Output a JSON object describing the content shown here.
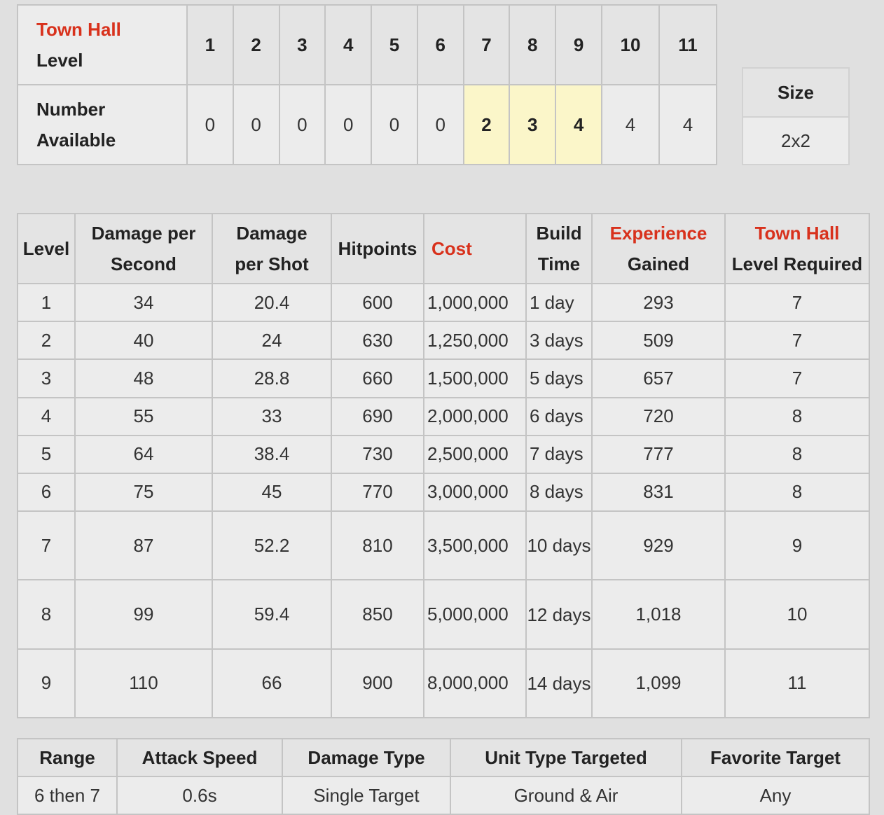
{
  "availability": {
    "th_label_red": "Town Hall",
    "th_label_rest": "Level",
    "levels": [
      "1",
      "2",
      "3",
      "4",
      "5",
      "6",
      "7",
      "8",
      "9",
      "10",
      "11"
    ],
    "number_label_1": "Number",
    "number_label_2": "Available",
    "counts": [
      "0",
      "0",
      "0",
      "0",
      "0",
      "0",
      "2",
      "3",
      "4",
      "4",
      "4"
    ],
    "highlighted_levels": [
      "7",
      "8",
      "9"
    ]
  },
  "size": {
    "header": "Size",
    "value": "2x2"
  },
  "levels_table": {
    "headers": {
      "level": "Level",
      "dps_1": "Damage per",
      "dps_2": "Second",
      "dmg_shot_1": "Damage",
      "dmg_shot_2": "per Shot",
      "hitpoints": "Hitpoints",
      "cost": "Cost",
      "build_1": "Build",
      "build_2": "Time",
      "exp_1": "Experience",
      "exp_2": "Gained",
      "th_1": "Town Hall",
      "th_2": "Level Required"
    },
    "rows": [
      {
        "level": "1",
        "dps": "34",
        "dmg_shot": "20.4",
        "hitpoints": "600",
        "cost": "1,000,000",
        "build": "1 day",
        "exp": "293",
        "th": "7"
      },
      {
        "level": "2",
        "dps": "40",
        "dmg_shot": "24",
        "hitpoints": "630",
        "cost": "1,250,000",
        "build": "3 days",
        "exp": "509",
        "th": "7"
      },
      {
        "level": "3",
        "dps": "48",
        "dmg_shot": "28.8",
        "hitpoints": "660",
        "cost": "1,500,000",
        "build": "5 days",
        "exp": "657",
        "th": "7"
      },
      {
        "level": "4",
        "dps": "55",
        "dmg_shot": "33",
        "hitpoints": "690",
        "cost": "2,000,000",
        "build": "6 days",
        "exp": "720",
        "th": "8"
      },
      {
        "level": "5",
        "dps": "64",
        "dmg_shot": "38.4",
        "hitpoints": "730",
        "cost": "2,500,000",
        "build": "7 days",
        "exp": "777",
        "th": "8"
      },
      {
        "level": "6",
        "dps": "75",
        "dmg_shot": "45",
        "hitpoints": "770",
        "cost": "3,000,000",
        "build": "8 days",
        "exp": "831",
        "th": "8"
      },
      {
        "level": "7",
        "dps": "87",
        "dmg_shot": "52.2",
        "hitpoints": "810",
        "cost": "3,500,000",
        "build": "10 days",
        "exp": "929",
        "th": "9"
      },
      {
        "level": "8",
        "dps": "99",
        "dmg_shot": "59.4",
        "hitpoints": "850",
        "cost": "5,000,000",
        "build": "12 days",
        "exp": "1,018",
        "th": "10"
      },
      {
        "level": "9",
        "dps": "110",
        "dmg_shot": "66",
        "hitpoints": "900",
        "cost": "8,000,000",
        "build": "14 days",
        "exp": "1,099",
        "th": "11"
      }
    ]
  },
  "stats": {
    "headers": [
      "Range",
      "Attack Speed",
      "Damage Type",
      "Unit Type Targeted",
      "Favorite Target"
    ],
    "values": [
      "6 then 7",
      "0.6s",
      "Single Target",
      "Ground & Air",
      "Any"
    ]
  }
}
